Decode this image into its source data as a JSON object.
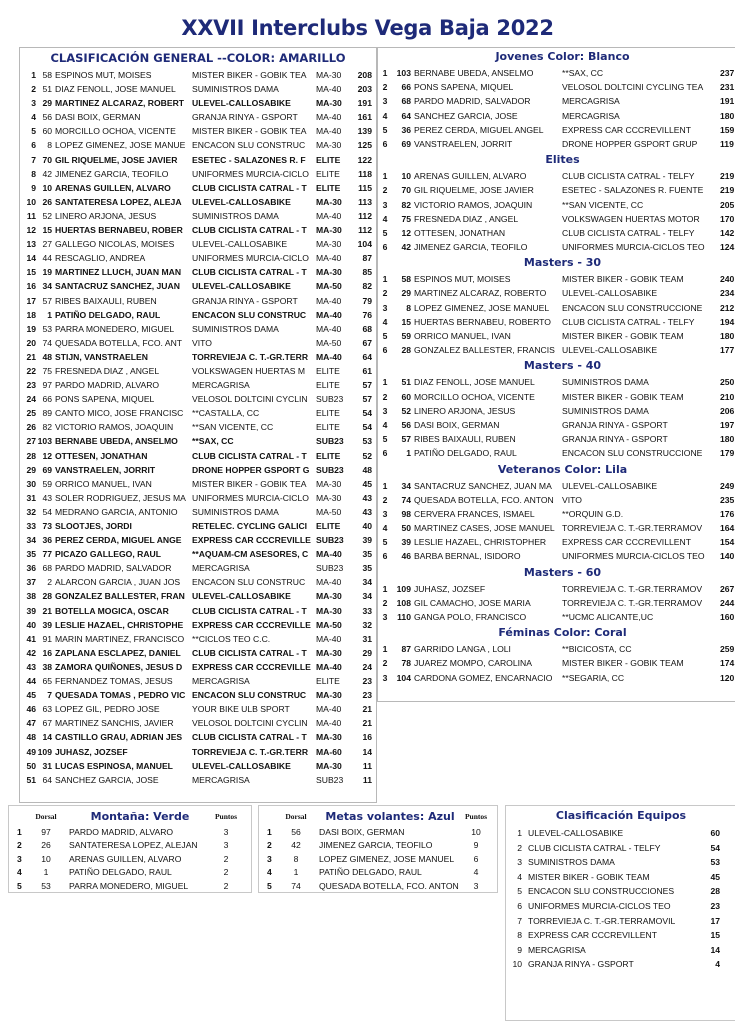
{
  "title": "XXVII Interclubs Vega Baja 2022",
  "general": {
    "heading": "CLASIFICACIÓN GENERAL --COLOR: AMARILLO",
    "rows": [
      [
        "1",
        "58",
        "ESPINOS MUT, MOISES",
        "MISTER BIKER - GOBIK TEA",
        "MA-30",
        "208",
        false
      ],
      [
        "2",
        "51",
        "DIAZ FENOLL, JOSE MANUEL",
        "SUMINISTROS DAMA",
        "MA-40",
        "203",
        false
      ],
      [
        "3",
        "29",
        "MARTINEZ ALCARAZ, ROBERT",
        "ULEVEL-CALLOSABIKE",
        "MA-30",
        "191",
        true
      ],
      [
        "4",
        "56",
        "DASI BOIX, GERMAN",
        "GRANJA RINYA - GSPORT",
        "MA-40",
        "161",
        false
      ],
      [
        "5",
        "60",
        "MORCILLO OCHOA, VICENTE",
        "MISTER BIKER - GOBIK TEA",
        "MA-40",
        "139",
        false
      ],
      [
        "6",
        "8",
        "LOPEZ GIMENEZ, JOSE MANUE",
        "ENCACON SLU CONSTRUC",
        "MA-30",
        "125",
        false
      ],
      [
        "7",
        "70",
        "GIL RIQUELME, JOSE JAVIER",
        "ESETEC - SALAZONES R. F",
        "ELITE",
        "122",
        true
      ],
      [
        "8",
        "42",
        "JIMENEZ GARCIA, TEOFILO",
        "UNIFORMES MURCIA-CICLO",
        "ELITE",
        "118",
        false
      ],
      [
        "9",
        "10",
        "ARENAS GUILLEN, ALVARO",
        "CLUB CICLISTA CATRAL - T",
        "ELITE",
        "115",
        true
      ],
      [
        "10",
        "26",
        "SANTATERESA LOPEZ, ALEJA",
        "ULEVEL-CALLOSABIKE",
        "MA-30",
        "113",
        true
      ],
      [
        "11",
        "52",
        "LINERO ARJONA, JESUS",
        "SUMINISTROS DAMA",
        "MA-40",
        "112",
        false
      ],
      [
        "12",
        "15",
        "HUERTAS BERNABEU, ROBER",
        "CLUB CICLISTA CATRAL - T",
        "MA-30",
        "112",
        true
      ],
      [
        "13",
        "27",
        "GALLEGO NICOLAS, MOISES",
        "ULEVEL-CALLOSABIKE",
        "MA-30",
        "104",
        false
      ],
      [
        "14",
        "44",
        "RESCAGLIO, ANDREA",
        "UNIFORMES MURCIA-CICLO",
        "MA-40",
        "87",
        false
      ],
      [
        "15",
        "19",
        "MARTINEZ LLUCH, JUAN MAN",
        "CLUB CICLISTA CATRAL - T",
        "MA-30",
        "85",
        true
      ],
      [
        "16",
        "34",
        "SANTACRUZ SANCHEZ, JUAN",
        "ULEVEL-CALLOSABIKE",
        "MA-50",
        "82",
        true
      ],
      [
        "17",
        "57",
        "RIBES BAIXAULI, RUBEN",
        "GRANJA RINYA - GSPORT",
        "MA-40",
        "79",
        false
      ],
      [
        "18",
        "1",
        "PATIÑO DELGADO, RAUL",
        "ENCACON SLU CONSTRUC",
        "MA-40",
        "76",
        true
      ],
      [
        "19",
        "53",
        "PARRA MONEDERO, MIGUEL",
        "SUMINISTROS DAMA",
        "MA-40",
        "68",
        false
      ],
      [
        "20",
        "74",
        "QUESADA BOTELLA, FCO. ANT",
        "VITO",
        "MA-50",
        "67",
        false
      ],
      [
        "21",
        "48",
        "STIJN, VANSTRAELEN",
        "TORREVIEJA C. T.-GR.TERR",
        "MA-40",
        "64",
        true
      ],
      [
        "22",
        "75",
        "FRESNEDA DIAZ , ANGEL",
        "VOLKSWAGEN HUERTAS M",
        "ELITE",
        "61",
        false
      ],
      [
        "23",
        "97",
        "PARDO MADRID, ALVARO",
        "MERCAGRISA",
        "ELITE",
        "57",
        false
      ],
      [
        "24",
        "66",
        "PONS SAPENA, MIQUEL",
        "VELOSOL DOLTCINI CYCLIN",
        "SUB23",
        "57",
        false
      ],
      [
        "25",
        "89",
        "CANTO MICO, JOSE FRANCISC",
        "**CASTALLA, CC",
        "ELITE",
        "54",
        false
      ],
      [
        "26",
        "82",
        "VICTORIO RAMOS, JOAQUIN",
        "**SAN VICENTE, CC",
        "ELITE",
        "54",
        false
      ],
      [
        "27",
        "103",
        "BERNABE UBEDA, ANSELMO",
        "**SAX, CC",
        "SUB23",
        "53",
        true
      ],
      [
        "28",
        "12",
        "OTTESEN, JONATHAN",
        "CLUB CICLISTA CATRAL - T",
        "ELITE",
        "52",
        true
      ],
      [
        "29",
        "69",
        "VANSTRAELEN, JORRIT",
        "DRONE HOPPER GSPORT G",
        "SUB23",
        "48",
        true
      ],
      [
        "30",
        "59",
        "ORRICO MANUEL, IVAN",
        "MISTER BIKER - GOBIK TEA",
        "MA-30",
        "45",
        false
      ],
      [
        "31",
        "43",
        "SOLER RODRIGUEZ, JESUS MA",
        "UNIFORMES MURCIA-CICLO",
        "MA-30",
        "43",
        false
      ],
      [
        "32",
        "54",
        "MEDRANO GARCIA, ANTONIO",
        "SUMINISTROS DAMA",
        "MA-50",
        "43",
        false
      ],
      [
        "33",
        "73",
        "SLOOTJES, JORDI",
        "RETELEC. CYCLING GALICI",
        "ELITE",
        "40",
        true
      ],
      [
        "34",
        "36",
        "PEREZ CERDA, MIGUEL ANGE",
        "EXPRESS CAR CCCREVILLE",
        "SUB23",
        "39",
        true
      ],
      [
        "35",
        "77",
        "PICAZO GALLEGO, RAUL",
        "**AQUAM-CM ASESORES, C",
        "MA-40",
        "35",
        true
      ],
      [
        "36",
        "68",
        "PARDO MADRID, SALVADOR",
        "MERCAGRISA",
        "SUB23",
        "35",
        false
      ],
      [
        "37",
        "2",
        "ALARCON GARCIA , JUAN JOS",
        "ENCACON SLU CONSTRUC",
        "MA-40",
        "34",
        false
      ],
      [
        "38",
        "28",
        "GONZALEZ BALLESTER, FRAN",
        "ULEVEL-CALLOSABIKE",
        "MA-30",
        "34",
        true
      ],
      [
        "39",
        "21",
        "BOTELLA MOGICA, OSCAR",
        "CLUB CICLISTA CATRAL - T",
        "MA-30",
        "33",
        true
      ],
      [
        "40",
        "39",
        "LESLIE HAZAEL, CHRISTOPHE",
        "EXPRESS CAR CCCREVILLE",
        "MA-50",
        "32",
        true
      ],
      [
        "41",
        "91",
        "MARIN MARTINEZ, FRANCISCO",
        "**CICLOS TEO C.C.",
        "MA-40",
        "31",
        false
      ],
      [
        "42",
        "16",
        "ZAPLANA ESCLAPEZ, DANIEL",
        "CLUB CICLISTA CATRAL - T",
        "MA-30",
        "29",
        true
      ],
      [
        "43",
        "38",
        "ZAMORA QUIÑONES, JESUS D",
        "EXPRESS CAR CCCREVILLE",
        "MA-40",
        "24",
        true
      ],
      [
        "44",
        "65",
        "FERNANDEZ TOMAS, JESUS",
        "MERCAGRISA",
        "ELITE",
        "23",
        false
      ],
      [
        "45",
        "7",
        "QUESADA TOMAS , PEDRO VIC",
        "ENCACON SLU CONSTRUC",
        "MA-30",
        "23",
        true
      ],
      [
        "46",
        "63",
        "LOPEZ GIL, PEDRO JOSE",
        "YOUR BIKE ULB SPORT",
        "MA-40",
        "21",
        false
      ],
      [
        "47",
        "67",
        "MARTINEZ SANCHIS, JAVIER",
        "VELOSOL DOLTCINI CYCLIN",
        "MA-40",
        "21",
        false
      ],
      [
        "48",
        "14",
        "CASTILLO GRAU, ADRIAN JES",
        "CLUB CICLISTA CATRAL - T",
        "MA-30",
        "16",
        true
      ],
      [
        "49",
        "109",
        "JUHASZ, JOZSEF",
        "TORREVIEJA C. T.-GR.TERR",
        "MA-60",
        "14",
        true
      ],
      [
        "50",
        "31",
        "LUCAS ESPINOSA, MANUEL",
        "ULEVEL-CALLOSABIKE",
        "MA-30",
        "11",
        true
      ],
      [
        "51",
        "64",
        "SANCHEZ GARCIA, JOSE",
        "MERCAGRISA",
        "SUB23",
        "11",
        false
      ]
    ]
  },
  "categories": [
    {
      "heading": "Jovenes  Color: Blanco",
      "rows": [
        [
          "1",
          "103",
          "BERNABE UBEDA, ANSELMO",
          "**SAX, CC",
          "237"
        ],
        [
          "2",
          "66",
          "PONS SAPENA, MIQUEL",
          "VELOSOL DOLTCINI CYCLING TEA",
          "231"
        ],
        [
          "3",
          "68",
          "PARDO MADRID, SALVADOR",
          "MERCAGRISA",
          "191"
        ],
        [
          "4",
          "64",
          "SANCHEZ GARCIA, JOSE",
          "MERCAGRISA",
          "180"
        ],
        [
          "5",
          "36",
          "PEREZ CERDA, MIGUEL ANGEL",
          "EXPRESS CAR CCCREVILLENT",
          "159"
        ],
        [
          "6",
          "69",
          "VANSTRAELEN, JORRIT",
          "DRONE HOPPER GSPORT GRUP",
          "119"
        ]
      ]
    },
    {
      "heading": "Elites",
      "rows": [
        [
          "1",
          "10",
          "ARENAS GUILLEN, ALVARO",
          "CLUB CICLISTA CATRAL - TELFY",
          "219"
        ],
        [
          "2",
          "70",
          "GIL RIQUELME, JOSE JAVIER",
          "ESETEC - SALAZONES R. FUENTE",
          "219"
        ],
        [
          "3",
          "82",
          "VICTORIO RAMOS, JOAQUIN",
          "**SAN VICENTE, CC",
          "205"
        ],
        [
          "4",
          "75",
          "FRESNEDA DIAZ , ANGEL",
          "VOLKSWAGEN HUERTAS MOTOR",
          "170"
        ],
        [
          "5",
          "12",
          "OTTESEN, JONATHAN",
          "CLUB CICLISTA CATRAL - TELFY",
          "142"
        ],
        [
          "6",
          "42",
          "JIMENEZ GARCIA, TEOFILO",
          "UNIFORMES MURCIA-CICLOS TEO",
          "124"
        ]
      ]
    },
    {
      "heading": "Masters - 30",
      "rows": [
        [
          "1",
          "58",
          "ESPINOS MUT, MOISES",
          "MISTER BIKER - GOBIK TEAM",
          "240"
        ],
        [
          "2",
          "29",
          "MARTINEZ ALCARAZ, ROBERTO",
          "ULEVEL-CALLOSABIKE",
          "234"
        ],
        [
          "3",
          "8",
          "LOPEZ GIMENEZ, JOSE MANUEL",
          "ENCACON SLU CONSTRUCCIONE",
          "212"
        ],
        [
          "4",
          "15",
          "HUERTAS BERNABEU, ROBERTO",
          "CLUB CICLISTA CATRAL - TELFY",
          "194"
        ],
        [
          "5",
          "59",
          "ORRICO MANUEL, IVAN",
          "MISTER BIKER - GOBIK TEAM",
          "180"
        ],
        [
          "6",
          "28",
          "GONZALEZ BALLESTER, FRANCIS",
          "ULEVEL-CALLOSABIKE",
          "177"
        ]
      ]
    },
    {
      "heading": "Masters - 40",
      "rows": [
        [
          "1",
          "51",
          "DIAZ FENOLL, JOSE MANUEL",
          "SUMINISTROS DAMA",
          "250"
        ],
        [
          "2",
          "60",
          "MORCILLO OCHOA, VICENTE",
          "MISTER BIKER - GOBIK TEAM",
          "210"
        ],
        [
          "3",
          "52",
          "LINERO ARJONA, JESUS",
          "SUMINISTROS DAMA",
          "206"
        ],
        [
          "4",
          "56",
          "DASI BOIX, GERMAN",
          "GRANJA RINYA - GSPORT",
          "197"
        ],
        [
          "5",
          "57",
          "RIBES BAIXAULI, RUBEN",
          "GRANJA RINYA - GSPORT",
          "180"
        ],
        [
          "6",
          "1",
          "PATIÑO DELGADO, RAUL",
          "ENCACON SLU CONSTRUCCIONE",
          "179"
        ]
      ]
    },
    {
      "heading": "Veteranos  Color: Lila",
      "rows": [
        [
          "1",
          "34",
          "SANTACRUZ SANCHEZ, JUAN MA",
          "ULEVEL-CALLOSABIKE",
          "249"
        ],
        [
          "2",
          "74",
          "QUESADA BOTELLA, FCO. ANTON",
          "VITO",
          "235"
        ],
        [
          "3",
          "98",
          "CERVERA FRANCES, ISMAEL",
          "**ORQUIN G.D.",
          "176"
        ],
        [
          "4",
          "50",
          "MARTINEZ CASES, JOSE MANUEL",
          "TORREVIEJA C. T.-GR.TERRAMOV",
          "164"
        ],
        [
          "5",
          "39",
          "LESLIE HAZAEL, CHRISTOPHER",
          "EXPRESS CAR CCCREVILLENT",
          "154"
        ],
        [
          "6",
          "46",
          "BARBA BERNAL, ISIDORO",
          "UNIFORMES MURCIA-CICLOS TEO",
          "140"
        ]
      ]
    },
    {
      "heading": "Masters - 60",
      "rows": [
        [
          "1",
          "109",
          "JUHASZ, JOZSEF",
          "TORREVIEJA C. T.-GR.TERRAMOV",
          "267"
        ],
        [
          "2",
          "108",
          "GIL CAMACHO, JOSE MARIA",
          "TORREVIEJA C. T.-GR.TERRAMOV",
          "244"
        ],
        [
          "3",
          "110",
          "GANGA POLO, FRANCISCO",
          "**UCMC ALICANTE,UC",
          "160"
        ]
      ]
    },
    {
      "heading": "Féminas  Color: Coral",
      "rows": [
        [
          "1",
          "87",
          "GARRIDO LANGA , LOLI",
          "**BICICOSTA, CC",
          "259"
        ],
        [
          "2",
          "78",
          "JUAREZ MOMPO, CAROLINA",
          "MISTER BIKER - GOBIK TEAM",
          "174"
        ],
        [
          "3",
          "104",
          "CARDONA GOMEZ, ENCARNACIO",
          "**SEGARIA, CC",
          "120"
        ]
      ]
    }
  ],
  "montana": {
    "heading": "Montaña: Verde",
    "dorsal_label": "Dorsal",
    "points_label": "Puntos",
    "rows": [
      [
        "1",
        "97",
        "PARDO MADRID, ALVARO",
        "3"
      ],
      [
        "2",
        "26",
        "SANTATERESA LOPEZ, ALEJAN",
        "3"
      ],
      [
        "3",
        "10",
        "ARENAS GUILLEN, ALVARO",
        "2"
      ],
      [
        "4",
        "1",
        "PATIÑO DELGADO, RAUL",
        "2"
      ],
      [
        "5",
        "53",
        "PARRA MONEDERO, MIGUEL",
        "2"
      ]
    ]
  },
  "metas": {
    "heading": "Metas volantes: Azul",
    "dorsal_label": "Dorsal",
    "points_label": "Puntos",
    "rows": [
      [
        "1",
        "56",
        "DASI BOIX, GERMAN",
        "10"
      ],
      [
        "2",
        "42",
        "JIMENEZ GARCIA, TEOFILO",
        "9"
      ],
      [
        "3",
        "8",
        "LOPEZ GIMENEZ, JOSE MANUEL",
        "6"
      ],
      [
        "4",
        "1",
        "PATIÑO DELGADO, RAUL",
        "4"
      ],
      [
        "5",
        "74",
        "QUESADA BOTELLA, FCO. ANTON",
        "3"
      ]
    ]
  },
  "equipos": {
    "heading": "Clasificación  Equipos",
    "rows": [
      [
        "1",
        "ULEVEL-CALLOSABIKE",
        "60"
      ],
      [
        "2",
        "CLUB CICLISTA CATRAL - TELFY",
        "54"
      ],
      [
        "3",
        "SUMINISTROS DAMA",
        "53"
      ],
      [
        "4",
        "MISTER BIKER - GOBIK TEAM",
        "45"
      ],
      [
        "5",
        "ENCACON SLU CONSTRUCCIONES",
        "28"
      ],
      [
        "6",
        "UNIFORMES MURCIA-CICLOS TEO",
        "23"
      ],
      [
        "7",
        "TORREVIEJA C. T.-GR.TERRAMOVIL",
        "17"
      ],
      [
        "8",
        "EXPRESS CAR CCCREVILLENT",
        "15"
      ],
      [
        "9",
        "MERCAGRISA",
        "14"
      ],
      [
        "10",
        "GRANJA RINYA - GSPORT",
        "4"
      ]
    ]
  },
  "colors": {
    "heading": "#1e2a78",
    "border": "#b8b8b8"
  }
}
